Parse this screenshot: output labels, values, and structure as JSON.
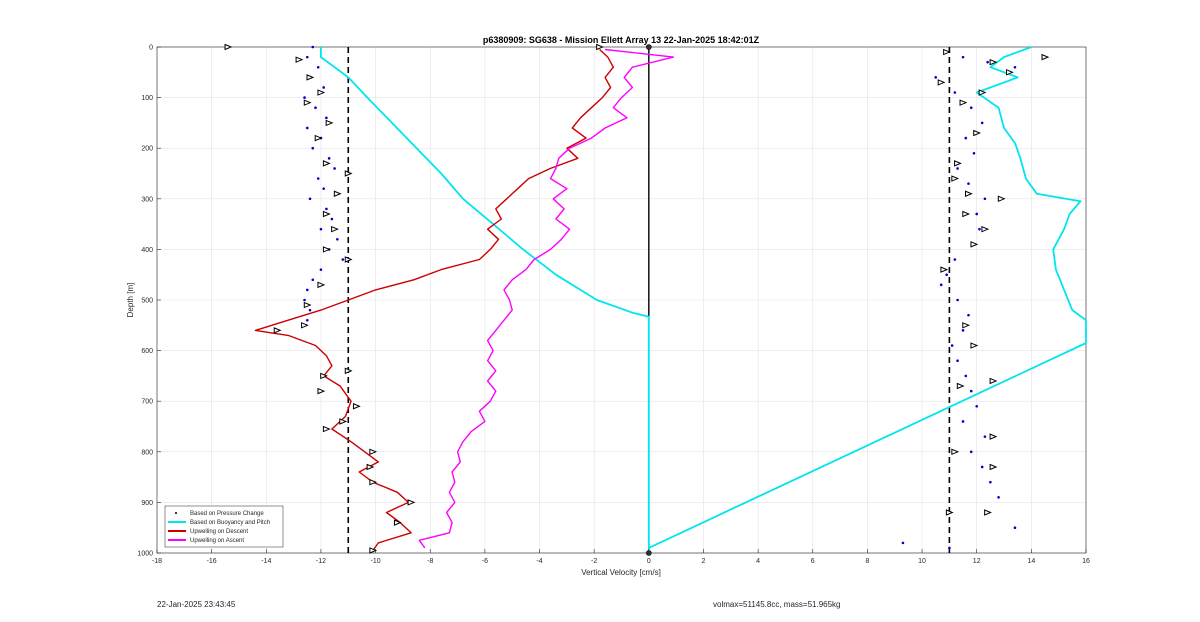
{
  "chart_data": {
    "type": "line",
    "title": "p6380909: SG638 - Mission Ellett Array 13 22-Jan-2025 18:42:01Z",
    "xlabel": "Vertical Velocity [cm/s]",
    "ylabel": "Depth [m]",
    "xlim": [
      -18,
      16
    ],
    "ylim": [
      1000,
      0
    ],
    "y_direction": "reversed",
    "grid": true,
    "legend_position": "bottom-left",
    "x_ticks": [
      -18,
      -16,
      -14,
      -12,
      -10,
      -8,
      -6,
      -4,
      -2,
      0,
      2,
      4,
      6,
      8,
      10,
      12,
      14,
      16
    ],
    "y_ticks": [
      0,
      100,
      200,
      300,
      400,
      500,
      600,
      700,
      800,
      900,
      1000
    ],
    "reference_lines": [
      {
        "x": -11,
        "style": "dashed",
        "color": "#000000"
      },
      {
        "x": 11,
        "style": "dashed",
        "color": "#000000"
      },
      {
        "x": 0,
        "style": "solid",
        "color": "#000000"
      }
    ],
    "series": [
      {
        "name": "Based on Pressure Change",
        "kind": "points",
        "color": "#0000cc",
        "descent": [
          [
            -12.3,
            0
          ],
          [
            -12.5,
            20
          ],
          [
            -12.1,
            40
          ],
          [
            -12.4,
            60
          ],
          [
            -11.9,
            80
          ],
          [
            -12.6,
            100
          ],
          [
            -12.2,
            120
          ],
          [
            -11.8,
            140
          ],
          [
            -12.5,
            160
          ],
          [
            -12.0,
            180
          ],
          [
            -12.3,
            200
          ],
          [
            -11.7,
            220
          ],
          [
            -11.5,
            240
          ],
          [
            -12.1,
            260
          ],
          [
            -11.9,
            280
          ],
          [
            -12.4,
            300
          ],
          [
            -11.8,
            320
          ],
          [
            -11.6,
            340
          ],
          [
            -12.0,
            360
          ],
          [
            -11.4,
            380
          ],
          [
            -11.7,
            400
          ],
          [
            -11.2,
            420
          ],
          [
            -12.0,
            440
          ],
          [
            -12.3,
            460
          ],
          [
            -12.5,
            480
          ],
          [
            -12.6,
            500
          ],
          [
            -12.4,
            520
          ],
          [
            -12.5,
            540
          ]
        ],
        "ascent": [
          [
            11.5,
            20
          ],
          [
            12.4,
            30
          ],
          [
            13.4,
            40
          ],
          [
            10.5,
            60
          ],
          [
            11.2,
            90
          ],
          [
            11.8,
            120
          ],
          [
            12.2,
            150
          ],
          [
            11.6,
            180
          ],
          [
            11.9,
            210
          ],
          [
            11.3,
            240
          ],
          [
            11.7,
            270
          ],
          [
            12.3,
            300
          ],
          [
            12.0,
            330
          ],
          [
            12.1,
            360
          ],
          [
            11.9,
            390
          ],
          [
            11.2,
            420
          ],
          [
            10.9,
            450
          ],
          [
            10.7,
            470
          ],
          [
            11.3,
            500
          ],
          [
            11.7,
            530
          ],
          [
            11.5,
            560
          ],
          [
            11.1,
            590
          ],
          [
            11.3,
            620
          ],
          [
            11.6,
            650
          ],
          [
            11.8,
            680
          ],
          [
            12.0,
            710
          ],
          [
            11.5,
            740
          ],
          [
            12.3,
            770
          ],
          [
            11.8,
            800
          ],
          [
            12.2,
            830
          ],
          [
            12.5,
            860
          ],
          [
            12.8,
            890
          ],
          [
            12.4,
            920
          ],
          [
            13.4,
            950
          ],
          [
            9.3,
            980
          ],
          [
            11.0,
            990
          ]
        ]
      },
      {
        "name": "Based on Buoyancy and Pitch",
        "kind": "line",
        "color": "#00e5ee",
        "descent": [
          [
            -12.0,
            0
          ],
          [
            -12.0,
            20
          ],
          [
            -11.5,
            40
          ],
          [
            -11.0,
            60
          ],
          [
            -10.3,
            100
          ],
          [
            -9.4,
            150
          ],
          [
            -8.5,
            200
          ],
          [
            -7.6,
            250
          ],
          [
            -6.8,
            300
          ],
          [
            -5.7,
            350
          ],
          [
            -4.6,
            400
          ],
          [
            -3.4,
            450
          ],
          [
            -1.9,
            500
          ],
          [
            -0.6,
            525
          ],
          [
            0,
            533
          ],
          [
            0,
            1000
          ]
        ],
        "ascent": [
          [
            14.0,
            0
          ],
          [
            13.0,
            20
          ],
          [
            12.5,
            40
          ],
          [
            13.5,
            60
          ],
          [
            12.0,
            90
          ],
          [
            12.8,
            120
          ],
          [
            13.0,
            160
          ],
          [
            13.4,
            190
          ],
          [
            13.6,
            220
          ],
          [
            13.8,
            260
          ],
          [
            14.2,
            290
          ],
          [
            15.8,
            305
          ],
          [
            15.4,
            330
          ],
          [
            15.2,
            360
          ],
          [
            14.8,
            400
          ],
          [
            14.9,
            440
          ],
          [
            15.2,
            480
          ],
          [
            15.5,
            520
          ],
          [
            16.0,
            540
          ],
          [
            16.0,
            585
          ],
          [
            0,
            990
          ]
        ]
      },
      {
        "name": "Upwelling on Descent",
        "kind": "line",
        "color": "#cc0000",
        "values": [
          [
            -1.8,
            5
          ],
          [
            -1.5,
            20
          ],
          [
            -1.3,
            40
          ],
          [
            -1.6,
            60
          ],
          [
            -1.4,
            80
          ],
          [
            -1.7,
            100
          ],
          [
            -2.1,
            120
          ],
          [
            -2.5,
            140
          ],
          [
            -2.8,
            160
          ],
          [
            -2.3,
            180
          ],
          [
            -3.0,
            200
          ],
          [
            -2.6,
            220
          ],
          [
            -3.6,
            240
          ],
          [
            -4.4,
            260
          ],
          [
            -4.8,
            280
          ],
          [
            -5.2,
            300
          ],
          [
            -5.6,
            320
          ],
          [
            -5.4,
            340
          ],
          [
            -5.9,
            360
          ],
          [
            -5.5,
            380
          ],
          [
            -5.8,
            400
          ],
          [
            -6.2,
            420
          ],
          [
            -7.6,
            440
          ],
          [
            -8.6,
            460
          ],
          [
            -10.0,
            480
          ],
          [
            -11.0,
            500
          ],
          [
            -12.0,
            520
          ],
          [
            -13.2,
            540
          ],
          [
            -14.4,
            560
          ],
          [
            -13.2,
            570
          ],
          [
            -12.2,
            590
          ],
          [
            -11.8,
            610
          ],
          [
            -11.6,
            630
          ],
          [
            -11.9,
            650
          ],
          [
            -11.3,
            670
          ],
          [
            -10.9,
            700
          ],
          [
            -11.1,
            730
          ],
          [
            -11.6,
            755
          ],
          [
            -10.9,
            780
          ],
          [
            -10.4,
            800
          ],
          [
            -9.9,
            820
          ],
          [
            -10.6,
            840
          ],
          [
            -10.1,
            860
          ],
          [
            -9.2,
            880
          ],
          [
            -8.8,
            900
          ],
          [
            -9.6,
            920
          ],
          [
            -9.1,
            940
          ],
          [
            -8.7,
            960
          ],
          [
            -9.9,
            980
          ],
          [
            -10.1,
            995
          ]
        ]
      },
      {
        "name": "Upwelling on Ascent",
        "kind": "line",
        "color": "#ff00ff",
        "values": [
          [
            -1.6,
            5
          ],
          [
            0.9,
            20
          ],
          [
            -0.6,
            40
          ],
          [
            -0.9,
            60
          ],
          [
            -0.6,
            80
          ],
          [
            -1.0,
            100
          ],
          [
            -1.3,
            120
          ],
          [
            -0.8,
            140
          ],
          [
            -1.6,
            160
          ],
          [
            -2.1,
            180
          ],
          [
            -2.9,
            200
          ],
          [
            -3.3,
            220
          ],
          [
            -3.4,
            240
          ],
          [
            -3.6,
            260
          ],
          [
            -3.0,
            280
          ],
          [
            -3.5,
            300
          ],
          [
            -3.1,
            320
          ],
          [
            -3.4,
            340
          ],
          [
            -2.9,
            360
          ],
          [
            -3.2,
            380
          ],
          [
            -3.6,
            400
          ],
          [
            -4.2,
            420
          ],
          [
            -4.5,
            440
          ],
          [
            -5.0,
            460
          ],
          [
            -5.3,
            480
          ],
          [
            -5.1,
            500
          ],
          [
            -5.0,
            520
          ],
          [
            -5.3,
            540
          ],
          [
            -5.6,
            560
          ],
          [
            -5.9,
            580
          ],
          [
            -5.7,
            600
          ],
          [
            -5.9,
            620
          ],
          [
            -5.6,
            640
          ],
          [
            -5.9,
            660
          ],
          [
            -5.6,
            680
          ],
          [
            -5.8,
            700
          ],
          [
            -6.2,
            720
          ],
          [
            -6.0,
            740
          ],
          [
            -6.5,
            760
          ],
          [
            -6.8,
            780
          ],
          [
            -7.0,
            800
          ],
          [
            -6.9,
            820
          ],
          [
            -7.2,
            840
          ],
          [
            -7.1,
            860
          ],
          [
            -7.3,
            880
          ],
          [
            -7.1,
            900
          ],
          [
            -7.4,
            920
          ],
          [
            -7.2,
            940
          ],
          [
            -7.3,
            960
          ],
          [
            -8.4,
            975
          ],
          [
            -8.2,
            990
          ]
        ]
      }
    ],
    "markers": {
      "color": "#000000",
      "shape": "triangle",
      "descent": [
        [
          -15.4,
          0
        ],
        [
          -12.8,
          25
        ],
        [
          -12.4,
          60
        ],
        [
          -12.0,
          90
        ],
        [
          -12.5,
          110
        ],
        [
          -11.7,
          150
        ],
        [
          -12.1,
          180
        ],
        [
          -11.8,
          230
        ],
        [
          -11.0,
          250
        ],
        [
          -11.4,
          290
        ],
        [
          -11.8,
          330
        ],
        [
          -11.5,
          360
        ],
        [
          -11.8,
          400
        ],
        [
          -11.0,
          420
        ],
        [
          -12.0,
          470
        ],
        [
          -12.5,
          510
        ],
        [
          -13.6,
          560
        ],
        [
          -12.6,
          550
        ],
        [
          -11.0,
          640
        ],
        [
          -11.9,
          650
        ],
        [
          -12.0,
          680
        ],
        [
          -10.7,
          710
        ],
        [
          -11.2,
          740
        ],
        [
          -11.8,
          755
        ],
        [
          -10.1,
          800
        ],
        [
          -10.2,
          830
        ],
        [
          -10.1,
          860
        ],
        [
          -8.7,
          900
        ],
        [
          -9.2,
          940
        ],
        [
          -10.1,
          995
        ],
        [
          -1.8,
          0
        ]
      ],
      "ascent": [
        [
          10.9,
          10
        ],
        [
          14.5,
          20
        ],
        [
          12.6,
          30
        ],
        [
          13.2,
          50
        ],
        [
          10.7,
          70
        ],
        [
          12.2,
          90
        ],
        [
          11.5,
          110
        ],
        [
          12.0,
          170
        ],
        [
          11.3,
          230
        ],
        [
          11.2,
          260
        ],
        [
          11.7,
          290
        ],
        [
          12.9,
          300
        ],
        [
          11.6,
          330
        ],
        [
          12.3,
          360
        ],
        [
          11.9,
          390
        ],
        [
          10.8,
          440
        ],
        [
          11.6,
          550
        ],
        [
          11.9,
          590
        ],
        [
          12.6,
          660
        ],
        [
          11.4,
          670
        ],
        [
          12.6,
          770
        ],
        [
          11.2,
          800
        ],
        [
          12.6,
          830
        ],
        [
          12.4,
          920
        ],
        [
          11.0,
          920
        ]
      ]
    },
    "start_points": [
      [
        0,
        0
      ],
      [
        0,
        1000
      ]
    ]
  },
  "footer": {
    "left_text": "22-Jan-2025 23:43:45",
    "right_text": "volmax=51145.8cc, mass=51.965kg"
  }
}
